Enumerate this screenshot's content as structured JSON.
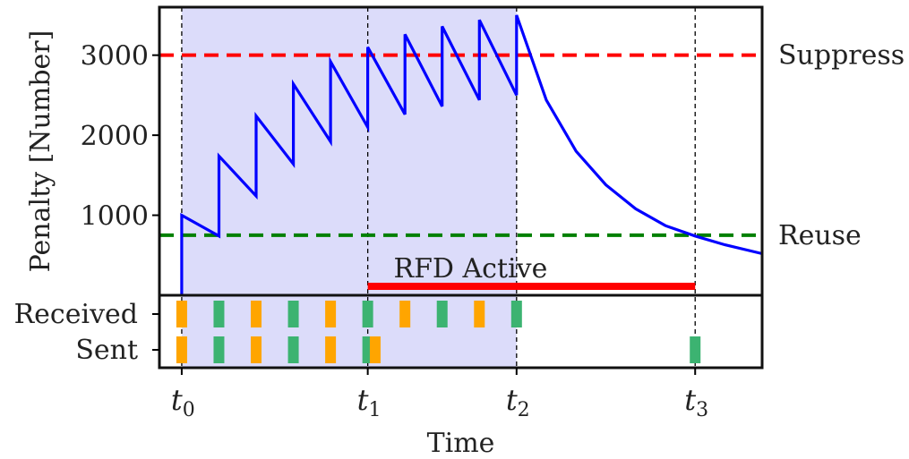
{
  "chart_data": {
    "type": "line",
    "xlabel": "Time",
    "ylabel": "Penalty [Number]",
    "ylim": [
      0,
      3600
    ],
    "xlim": [
      -0.6,
      15.6
    ],
    "y_ticks": [
      {
        "value": 1000,
        "label": "1000"
      },
      {
        "value": 2000,
        "label": "2000"
      },
      {
        "value": 3000,
        "label": "3000"
      }
    ],
    "time_markers": [
      {
        "name": "t0",
        "base": "t",
        "sub": "0",
        "x": 0
      },
      {
        "name": "t1",
        "base": "t",
        "sub": "1",
        "x": 5
      },
      {
        "name": "t2",
        "base": "t",
        "sub": "2",
        "x": 9
      },
      {
        "name": "t3",
        "base": "t",
        "sub": "3",
        "x": 13.8
      }
    ],
    "thresholds": [
      {
        "name": "suppress",
        "label": "Suppress",
        "value": 3000,
        "color": "#ff0000"
      },
      {
        "name": "reuse",
        "label": "Reuse",
        "value": 750,
        "color": "#008000"
      }
    ],
    "shaded_region": {
      "x_start": 0,
      "x_end": 9,
      "color": "#dcdcfa"
    },
    "rfd_active": {
      "label": "RFD Active",
      "x_start": 5,
      "x_end": 13.8,
      "color": "#ff0000"
    },
    "penalty_series": {
      "name": "Penalty",
      "color": "#0000ff",
      "x": [
        0,
        0,
        1,
        1,
        2,
        2,
        3,
        3,
        4,
        4,
        5,
        5,
        6,
        6,
        7,
        7,
        8,
        8,
        9,
        9,
        9.8,
        10.6,
        11.4,
        12.2,
        13,
        13.8,
        14.6,
        15.6
      ],
      "y": [
        0,
        1000,
        740,
        1740,
        1240,
        2240,
        1640,
        2640,
        1920,
        2920,
        2100,
        3100,
        2260,
        3260,
        2360,
        3360,
        2440,
        3440,
        2500,
        3500,
        2440,
        1800,
        1380,
        1080,
        870,
        740,
        630,
        520
      ]
    },
    "event_rows": [
      {
        "name": "received",
        "label": "Received"
      },
      {
        "name": "sent",
        "label": "Sent"
      }
    ],
    "events": {
      "received": [
        {
          "x": 0,
          "kind": "orange"
        },
        {
          "x": 1,
          "kind": "green"
        },
        {
          "x": 2,
          "kind": "orange"
        },
        {
          "x": 3,
          "kind": "green"
        },
        {
          "x": 4,
          "kind": "orange"
        },
        {
          "x": 5,
          "kind": "green"
        },
        {
          "x": 6,
          "kind": "orange"
        },
        {
          "x": 7,
          "kind": "green"
        },
        {
          "x": 8,
          "kind": "orange"
        },
        {
          "x": 9,
          "kind": "green"
        }
      ],
      "sent": [
        {
          "x": 0,
          "kind": "orange"
        },
        {
          "x": 1,
          "kind": "green"
        },
        {
          "x": 2,
          "kind": "orange"
        },
        {
          "x": 3,
          "kind": "green"
        },
        {
          "x": 4,
          "kind": "orange"
        },
        {
          "x": 5,
          "kind": "green"
        },
        {
          "x": 5.2,
          "kind": "orange"
        },
        {
          "x": 13.8,
          "kind": "green"
        }
      ]
    },
    "event_colors": {
      "orange": "#ffa500",
      "green": "#3cb371"
    },
    "grid": false
  }
}
